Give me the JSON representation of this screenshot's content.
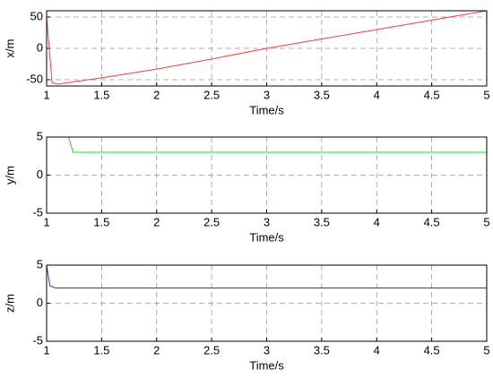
{
  "chart_data": [
    {
      "type": "line",
      "xlabel": "Time/s",
      "ylabel": "x/m",
      "x": [
        1,
        1.05,
        1.1,
        1.5,
        2,
        2.5,
        3,
        3.5,
        4,
        4.5,
        5
      ],
      "series": [
        {
          "color": "#ff3b3b",
          "values": [
            50,
            -55,
            -57,
            -47,
            -33,
            -17,
            0,
            15,
            30,
            45,
            60
          ]
        }
      ],
      "xlim": [
        1,
        5
      ],
      "xticks": [
        1,
        1.5,
        2,
        2.5,
        3,
        3.5,
        4,
        4.5,
        5
      ],
      "ylim": [
        -60,
        60
      ],
      "yticks": [
        -50,
        0,
        50
      ],
      "grid": true
    },
    {
      "type": "line",
      "xlabel": "Time/s",
      "ylabel": "y/m",
      "x": [
        1.2,
        1.24,
        5
      ],
      "series": [
        {
          "color": "#22dd22",
          "values": [
            5,
            3,
            3
          ]
        }
      ],
      "xlim": [
        1,
        5
      ],
      "xticks": [
        1,
        1.5,
        2,
        2.5,
        3,
        3.5,
        4,
        4.5,
        5
      ],
      "ylim": [
        -5,
        5
      ],
      "yticks": [
        -5,
        0,
        5
      ],
      "grid": true
    },
    {
      "type": "line",
      "xlabel": "Time/s",
      "ylabel": "z/m",
      "x": [
        1,
        1.03,
        1.08,
        5
      ],
      "series": [
        {
          "color": "#3333cc",
          "values": [
            5,
            2.3,
            2,
            2
          ]
        }
      ],
      "xlim": [
        1,
        5
      ],
      "xticks": [
        1,
        1.5,
        2,
        2.5,
        3,
        3.5,
        4,
        4.5,
        5
      ],
      "ylim": [
        -5,
        5
      ],
      "yticks": [
        -5,
        0,
        5
      ],
      "grid": true
    }
  ]
}
